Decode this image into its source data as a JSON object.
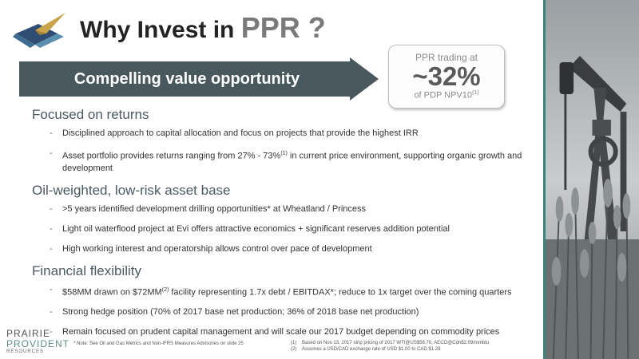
{
  "header": {
    "title_prefix": "Why Invest in ",
    "title_accent": "PPR ?"
  },
  "banner": {
    "text": "Compelling value opportunity"
  },
  "callout": {
    "line1": "PPR trading at",
    "value": "~32%",
    "line3": "of PDP NPV10",
    "line3_sup": "(1)"
  },
  "sections": [
    {
      "heading": "Focused on returns",
      "bullets": [
        {
          "text": "Disciplined approach to capital allocation and focus on projects that provide the highest IRR"
        },
        {
          "pre": "Asset portfolio provides returns ranging from 27% - 73%",
          "sup": "(1)",
          "post": " in current price environment, supporting organic growth and development"
        }
      ]
    },
    {
      "heading": "Oil-weighted, low-risk asset base",
      "bullets": [
        {
          "text": ">5 years identified development drilling opportunities* at Wheatland / Princess"
        },
        {
          "text": "Light oil waterflood project at Evi offers attractive economics + significant reserves addition potential"
        },
        {
          "text": "High working interest and operatorship allows control over pace of development"
        }
      ]
    },
    {
      "heading": "Financial flexibility",
      "bullets": [
        {
          "pre": "$58MM drawn on $72MM",
          "sup": "(2)",
          "post": " facility representing 1.7x debt / EBITDAX*; reduce to 1x target over the coming quarters"
        },
        {
          "text": "Strong hedge position (70% of 2017 base net production; 36% of 2018 base net production)"
        },
        {
          "text": "Remain focused on prudent capital management and will scale our 2017 budget depending on commodity prices"
        }
      ]
    }
  ],
  "footer": {
    "logo_line1": "PRAIRIE",
    "logo_line2": "PROVIDENT",
    "logo_line3": "RESOURCES",
    "note": "* Note: See Oil and Gas Metrics and Non-IFRS Measures Advisories on slide 25",
    "footnotes": [
      {
        "num": "(1)",
        "text": "Based on Nov 13, 2017 strip pricing of 2017 WTI@US$56.70, AECO@Cdn$2.09/mmbtu"
      },
      {
        "num": "(2)",
        "text": "Assumes a USD/CAD exchange rate of USD $1.00 to CAD $1.28"
      }
    ]
  }
}
